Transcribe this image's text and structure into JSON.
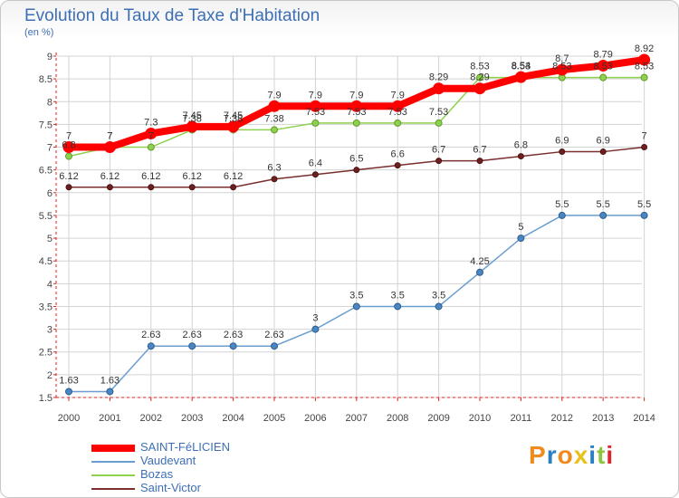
{
  "title": "Evolution du Taux de Taxe d'Habitation",
  "subtitle": "(en %)",
  "logo": {
    "text": "Proxiti",
    "letters": [
      "P",
      "r",
      "o",
      "x",
      "i",
      "t",
      "i"
    ],
    "colors": [
      "#f08a1c",
      "#2c7fc1",
      "#f08a1c",
      "#e8c21a",
      "#2c7fc1",
      "#8fc43e",
      "#e0242f"
    ]
  },
  "chart_data": {
    "type": "line",
    "x": [
      2000,
      2001,
      2002,
      2003,
      2004,
      2005,
      2006,
      2007,
      2008,
      2009,
      2010,
      2011,
      2012,
      2013,
      2014
    ],
    "ylim": [
      1.5,
      9
    ],
    "yticks": [
      1.5,
      2,
      2.5,
      3,
      3.5,
      4,
      4.5,
      5,
      5.5,
      6,
      6.5,
      7,
      7.5,
      8,
      8.5,
      9
    ],
    "grid": true,
    "legend_position": "bottom-left",
    "series": [
      {
        "name": "SAINT-FéLICIEN",
        "color": "#ff0000",
        "values": [
          7,
          7,
          7.3,
          7.45,
          7.45,
          7.9,
          7.9,
          7.9,
          7.9,
          8.29,
          8.29,
          8.54,
          8.7,
          8.79,
          8.92
        ],
        "labels": [
          "7",
          "7",
          "7.3",
          "7.45",
          "7.45",
          "7.9",
          "7.9",
          "7.9",
          "7.9",
          "8.29",
          "8.29",
          "8.54",
          "8.7",
          "8.79",
          "8.92"
        ]
      },
      {
        "name": "Vaudevant",
        "color": "#6a9ed0",
        "values": [
          1.63,
          1.63,
          2.63,
          2.63,
          2.63,
          2.63,
          3,
          3.5,
          3.5,
          3.5,
          4.25,
          5,
          5.5,
          5.5,
          5.5
        ],
        "labels": [
          "1.63",
          "1.63",
          "2.63",
          "2.63",
          "2.63",
          "2.63",
          "3",
          "3.5",
          "3.5",
          "3.5",
          "4.25",
          "5",
          "5.5",
          "5.5",
          "5.5"
        ]
      },
      {
        "name": "Bozas",
        "color": "#8ed14e",
        "values": [
          6.8,
          7,
          7,
          7.38,
          7.38,
          7.38,
          7.53,
          7.53,
          7.53,
          7.53,
          8.53,
          8.53,
          8.53,
          8.53,
          8.53
        ],
        "labels": [
          "6.8",
          "7",
          "7",
          "7.38",
          "7.38",
          "7.38",
          "7.53",
          "7.53",
          "7.53",
          "7.53",
          "8.53",
          "8.53",
          "8.53",
          "8.53",
          "8.53"
        ]
      },
      {
        "name": "Saint-Victor",
        "color": "#7a2e2e",
        "values": [
          6.12,
          6.12,
          6.12,
          6.12,
          6.12,
          6.3,
          6.4,
          6.5,
          6.6,
          6.7,
          6.7,
          6.8,
          6.9,
          6.9,
          7
        ],
        "labels": [
          "6.12",
          "6.12",
          "6.12",
          "6.12",
          "6.12",
          "6.3",
          "6.4",
          "6.5",
          "6.6",
          "6.7",
          "6.7",
          "6.8",
          "6.9",
          "6.9",
          "7"
        ]
      }
    ]
  }
}
